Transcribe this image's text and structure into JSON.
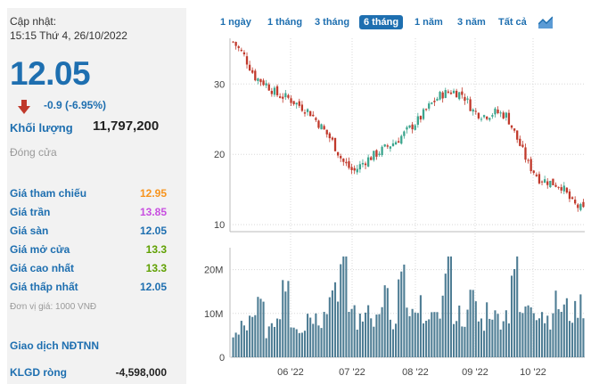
{
  "info": {
    "updated_label": "Cập nhật:",
    "updated_time": "15:15 Thứ 4, 26/10/2022",
    "price": "12.05",
    "change": "-0.9 (-6.95%)",
    "volume_label": "Khối lượng",
    "volume_value": "11,797,200",
    "close_label": "Đóng cửa",
    "stats": [
      {
        "label": "Giá tham chiếu",
        "value": "12.95",
        "color": "#f7941d"
      },
      {
        "label": "Giá trần",
        "value": "13.85",
        "color": "#c84fe0"
      },
      {
        "label": "Giá sàn",
        "value": "12.05",
        "color": "#1e6fb0"
      },
      {
        "label": "Giá mở cửa",
        "value": "13.3",
        "color": "#5fa000"
      },
      {
        "label": "Giá cao nhất",
        "value": "13.3",
        "color": "#5fa000"
      },
      {
        "label": "Giá thấp nhất",
        "value": "12.05",
        "color": "#1e6fb0"
      }
    ],
    "unit_note": "Đơn vị giá: 1000 VNĐ",
    "ndt_title": "Giao dịch NĐTNN",
    "ndt_net_label": "KLGD ròng",
    "ndt_net_value": "-4,598,000"
  },
  "tabs": [
    {
      "label": "1 ngày",
      "active": false
    },
    {
      "label": "1 tháng",
      "active": false
    },
    {
      "label": "3 tháng",
      "active": false
    },
    {
      "label": "6 tháng",
      "active": true
    },
    {
      "label": "1 năm",
      "active": false
    },
    {
      "label": "3 năm",
      "active": false
    },
    {
      "label": "Tất cả",
      "active": false
    }
  ],
  "chart_toggle_icon": "area-chart-icon",
  "colors": {
    "accent": "#1e6fb0",
    "down": "#c0392b",
    "up": "#3ba58e",
    "volume": "#4e7d94",
    "grid": "#d8d8d8"
  },
  "chart_data": {
    "type": "candlestick",
    "x_tick_labels": [
      "06 '22",
      "07 '22",
      "08 '22",
      "09 '22",
      "10 '22"
    ],
    "price_axis": {
      "ticks": [
        30,
        20,
        10
      ],
      "range": [
        9,
        36.5
      ]
    },
    "volume_axis": {
      "ticks": [
        "20M",
        "10M",
        "0"
      ],
      "max": 25
    },
    "price_anchors": [
      36,
      34,
      31,
      30,
      28.5,
      28,
      27,
      26,
      24,
      22,
      19,
      17.5,
      19,
      20,
      21,
      22,
      23.5,
      25,
      27,
      28.5,
      29,
      28.5,
      26,
      25.5,
      26,
      25.5,
      22,
      18.5,
      16.5,
      16,
      15.5,
      13,
      12.05
    ],
    "volume_approx_M": [
      5,
      7,
      8,
      12,
      6,
      9,
      19,
      8,
      7,
      10,
      9,
      13,
      17,
      20,
      11,
      8,
      12,
      9,
      14,
      7,
      17,
      10,
      9,
      11,
      8,
      12,
      22,
      10,
      9,
      13,
      8,
      11,
      9,
      10,
      21,
      10,
      13,
      11,
      9,
      12,
      11,
      10,
      12,
      12
    ]
  }
}
